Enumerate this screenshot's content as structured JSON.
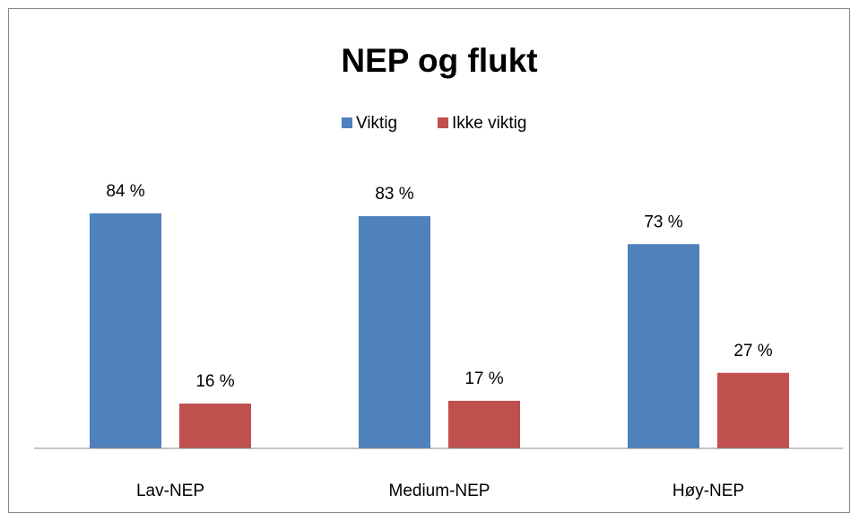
{
  "chart_data": {
    "type": "bar",
    "title": "NEP og flukt",
    "categories": [
      "Lav-NEP",
      "Medium-NEP",
      "Høy-NEP"
    ],
    "series": [
      {
        "name": "Viktig",
        "color": "#4f81bd",
        "values": [
          84,
          83,
          73
        ],
        "value_labels": [
          "84 %",
          "83 %",
          "73 %"
        ]
      },
      {
        "name": "Ikke viktig",
        "color": "#c0504d",
        "values": [
          16,
          17,
          27
        ],
        "value_labels": [
          "16 %",
          "17 %",
          "27 %"
        ]
      }
    ],
    "ylim": [
      0,
      100
    ],
    "legend": "top"
  }
}
